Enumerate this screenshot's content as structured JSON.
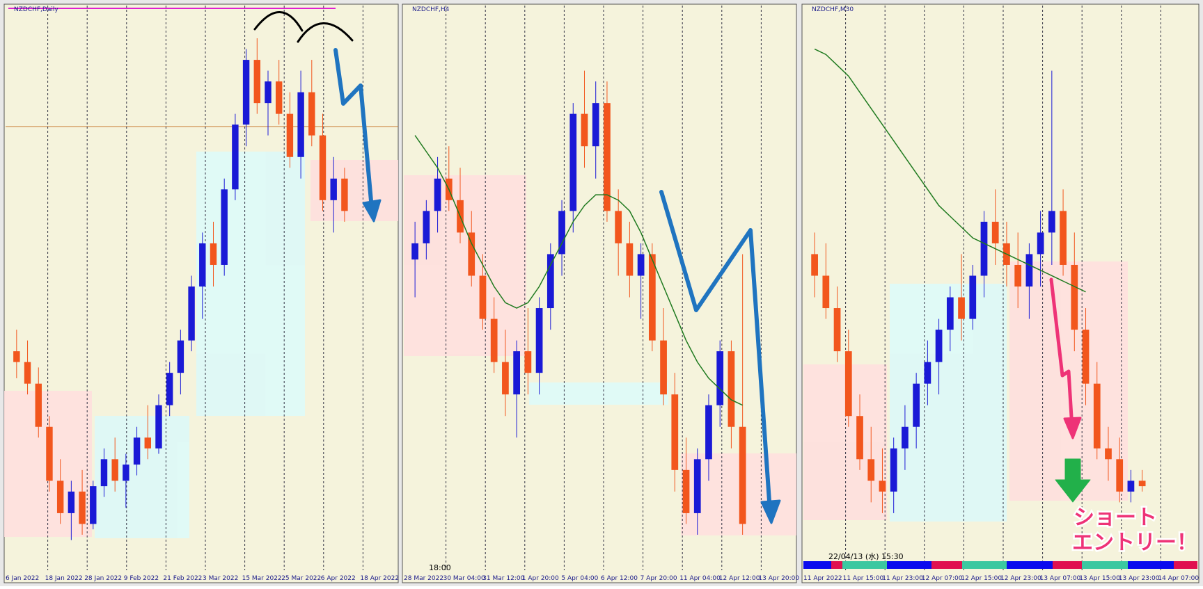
{
  "chart_data": [
    {
      "type": "candlestick",
      "title": "NZDCHF,Daily",
      "ylim": [
        0,
        100
      ],
      "colors": {
        "up": "#1a1ad6",
        "down": "#f2561d"
      },
      "xlabels": [
        "6 Jan 2022",
        "18 Jan 2022",
        "28 Jan 2022",
        "9 Feb 2022",
        "21 Feb 2022",
        "3 Mar 2022",
        "15 Mar 2022",
        "25 Mar 2022",
        "6 Apr 2022",
        "18 Apr 2022"
      ],
      "ohlc": [
        [
          38,
          42,
          33,
          36
        ],
        [
          36,
          40,
          30,
          32
        ],
        [
          32,
          35,
          22,
          24
        ],
        [
          24,
          26,
          12,
          14
        ],
        [
          14,
          18,
          6,
          8
        ],
        [
          8,
          14,
          3,
          12
        ],
        [
          12,
          16,
          4,
          6
        ],
        [
          6,
          14,
          5,
          13
        ],
        [
          13,
          20,
          11,
          18
        ],
        [
          18,
          22,
          12,
          14
        ],
        [
          14,
          19,
          9,
          17
        ],
        [
          17,
          24,
          15,
          22
        ],
        [
          22,
          28,
          18,
          20
        ],
        [
          20,
          30,
          19,
          28
        ],
        [
          28,
          36,
          26,
          34
        ],
        [
          34,
          42,
          30,
          40
        ],
        [
          40,
          52,
          38,
          50
        ],
        [
          50,
          60,
          44,
          58
        ],
        [
          58,
          62,
          50,
          54
        ],
        [
          54,
          70,
          52,
          68
        ],
        [
          68,
          82,
          66,
          80
        ],
        [
          80,
          94,
          76,
          92
        ],
        [
          92,
          96,
          82,
          84
        ],
        [
          84,
          90,
          78,
          88
        ],
        [
          88,
          92,
          80,
          82
        ],
        [
          82,
          86,
          72,
          74
        ],
        [
          74,
          90,
          70,
          86
        ],
        [
          86,
          92,
          76,
          78
        ],
        [
          78,
          82,
          64,
          66
        ],
        [
          66,
          74,
          60,
          70
        ],
        [
          70,
          72,
          62,
          64
        ]
      ]
    },
    {
      "type": "candlestick",
      "title": "NZDCHF,H4",
      "ylim": [
        0,
        100
      ],
      "colors": {
        "up": "#1a1ad6",
        "down": "#f2561d",
        "ma": "#1f7a1f"
      },
      "xlabels": [
        "28 Mar 2022",
        "30 Mar 04:00",
        "31 Mar 12:00",
        "1 Apr 20:00",
        "5 Apr 04:00",
        "6 Apr 12:00",
        "7 Apr 20:00",
        "11 Apr 04:00",
        "12 Apr 12:00",
        "13 Apr 20:00"
      ],
      "ohlc": [
        [
          55,
          62,
          48,
          58
        ],
        [
          58,
          66,
          55,
          64
        ],
        [
          64,
          74,
          60,
          70
        ],
        [
          70,
          76,
          64,
          66
        ],
        [
          66,
          72,
          58,
          60
        ],
        [
          60,
          64,
          50,
          52
        ],
        [
          52,
          56,
          42,
          44
        ],
        [
          44,
          48,
          34,
          36
        ],
        [
          36,
          42,
          26,
          30
        ],
        [
          30,
          40,
          22,
          38
        ],
        [
          38,
          46,
          30,
          34
        ],
        [
          34,
          48,
          30,
          46
        ],
        [
          46,
          58,
          42,
          56
        ],
        [
          56,
          66,
          52,
          64
        ],
        [
          64,
          84,
          60,
          82
        ],
        [
          82,
          90,
          72,
          76
        ],
        [
          76,
          88,
          70,
          84
        ],
        [
          84,
          88,
          62,
          64
        ],
        [
          64,
          68,
          52,
          58
        ],
        [
          58,
          62,
          48,
          52
        ],
        [
          52,
          58,
          44,
          56
        ],
        [
          56,
          58,
          38,
          40
        ],
        [
          40,
          46,
          28,
          30
        ],
        [
          30,
          34,
          12,
          16
        ],
        [
          16,
          22,
          6,
          8
        ],
        [
          8,
          20,
          4,
          18
        ],
        [
          18,
          30,
          14,
          28
        ],
        [
          28,
          40,
          24,
          38
        ],
        [
          38,
          40,
          20,
          24
        ],
        [
          24,
          56,
          4,
          6
        ]
      ],
      "ma": [
        78,
        75,
        72,
        68,
        63,
        58,
        54,
        50,
        47,
        46,
        47,
        50,
        54,
        58,
        62,
        65,
        67,
        67,
        66,
        64,
        60,
        55,
        50,
        45,
        40,
        36,
        33,
        31,
        29,
        28
      ]
    },
    {
      "type": "candlestick",
      "title": "NZDCHF,M30",
      "ylim": [
        0,
        100
      ],
      "colors": {
        "up": "#1a1ad6",
        "down": "#f2561d",
        "ma": "#1f7a1f"
      },
      "xlabels": [
        "11 Apr 2022",
        "11 Apr 15:00",
        "11 Apr 23:00",
        "12 Apr 07:00",
        "12 Apr 15:00",
        "12 Apr 23:00",
        "13 Apr 07:00",
        "13 Apr 15:00",
        "13 Apr 23:00",
        "14 Apr 07:00"
      ],
      "ohlc": [
        [
          56,
          60,
          48,
          52
        ],
        [
          52,
          58,
          44,
          46
        ],
        [
          46,
          50,
          36,
          38
        ],
        [
          38,
          42,
          24,
          26
        ],
        [
          26,
          30,
          16,
          18
        ],
        [
          18,
          24,
          10,
          14
        ],
        [
          14,
          20,
          8,
          12
        ],
        [
          12,
          22,
          8,
          20
        ],
        [
          20,
          28,
          16,
          24
        ],
        [
          24,
          34,
          20,
          32
        ],
        [
          32,
          40,
          28,
          36
        ],
        [
          36,
          44,
          30,
          42
        ],
        [
          42,
          50,
          38,
          48
        ],
        [
          48,
          56,
          40,
          44
        ],
        [
          44,
          54,
          42,
          52
        ],
        [
          52,
          64,
          48,
          62
        ],
        [
          62,
          68,
          54,
          58
        ],
        [
          58,
          62,
          50,
          54
        ],
        [
          54,
          60,
          46,
          50
        ],
        [
          50,
          58,
          44,
          56
        ],
        [
          56,
          64,
          50,
          60
        ],
        [
          60,
          90,
          54,
          64
        ],
        [
          64,
          68,
          52,
          54
        ],
        [
          54,
          60,
          38,
          42
        ],
        [
          42,
          46,
          28,
          32
        ],
        [
          32,
          36,
          18,
          20
        ],
        [
          20,
          24,
          14,
          18
        ],
        [
          18,
          22,
          10,
          12
        ],
        [
          12,
          16,
          10,
          14
        ],
        [
          14,
          16,
          12,
          13
        ]
      ],
      "ma": [
        94,
        93,
        91,
        89,
        86,
        83,
        80,
        77,
        74,
        71,
        68,
        65,
        63,
        61,
        59,
        58,
        57,
        56,
        55,
        54,
        53,
        52,
        51,
        50,
        49,
        null,
        null,
        null,
        null,
        null
      ]
    }
  ],
  "status_time": "18:00",
  "timestamp": "22/04/13 (水) 15:30",
  "annotation": [
    "ショート",
    "エントリー！"
  ]
}
